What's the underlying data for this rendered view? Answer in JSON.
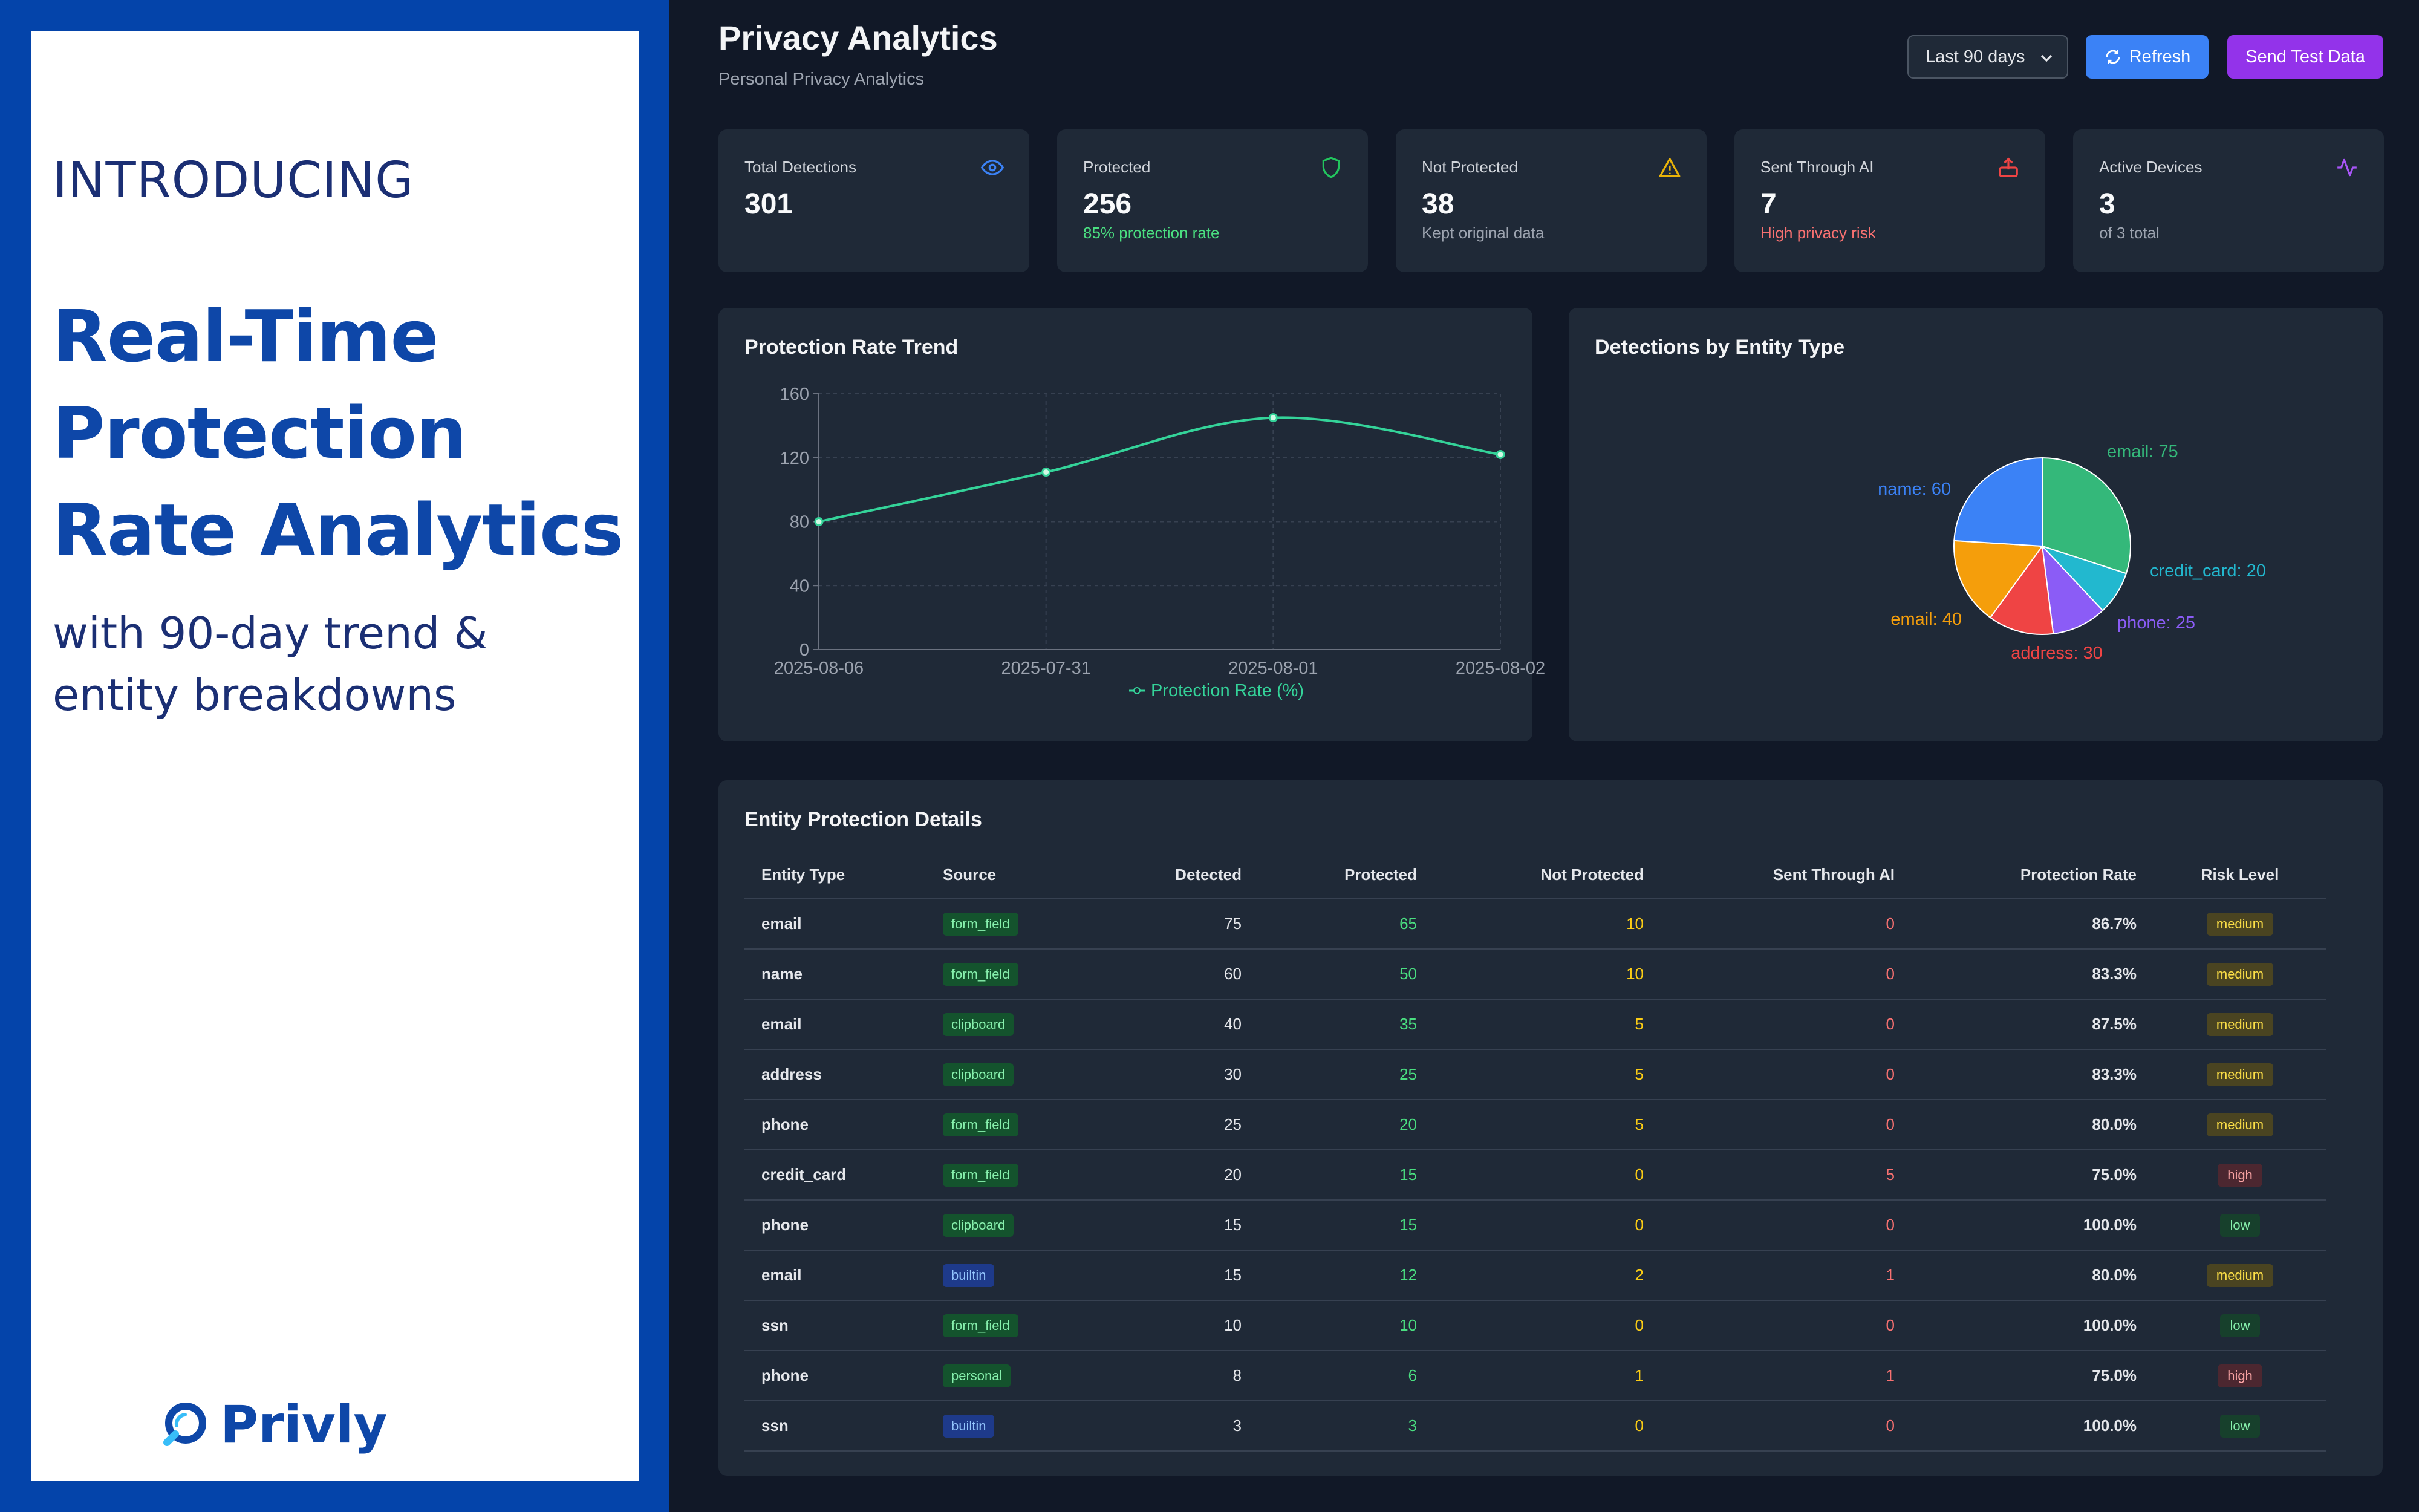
{
  "promo": {
    "intro": "INTRODUCING",
    "headline": "Real-Time Protection Rate Analytics",
    "subtitle": "with 90-day trend & entity breakdowns",
    "brand": "Privly"
  },
  "header": {
    "title": "Privacy Analytics",
    "subtitle": "Personal Privacy Analytics",
    "range_selected": "Last 90 days",
    "refresh_label": "Refresh",
    "send_test_label": "Send Test Data"
  },
  "stats": [
    {
      "label": "Total Detections",
      "value": "301",
      "note": "",
      "icon": "eye-icon",
      "color": "#3b82f6"
    },
    {
      "label": "Protected",
      "value": "256",
      "note": "85% protection rate",
      "icon": "shield-icon",
      "color": "#22c55e"
    },
    {
      "label": "Not Protected",
      "value": "38",
      "note": "Kept original data",
      "icon": "warning-icon",
      "color": "#eab308"
    },
    {
      "label": "Sent Through AI",
      "value": "7",
      "note": "High privacy risk",
      "icon": "upload-icon",
      "color": "#ef4444"
    },
    {
      "label": "Active Devices",
      "value": "3",
      "note": "of 3 total",
      "icon": "activity-icon",
      "color": "#a855f7"
    }
  ],
  "trend_title": "Protection Rate Trend",
  "pie_title": "Detections by Entity Type",
  "table": {
    "title": "Entity Protection Details",
    "headers": [
      "Entity Type",
      "Source",
      "Detected",
      "Protected",
      "Not Protected",
      "Sent Through AI",
      "Protection Rate",
      "Risk Level"
    ],
    "rows": [
      {
        "entity": "email",
        "source": "form_field",
        "detected": "75",
        "protected": "65",
        "not_protected": "10",
        "sent_ai": "0",
        "rate": "86.7%",
        "risk": "medium"
      },
      {
        "entity": "name",
        "source": "form_field",
        "detected": "60",
        "protected": "50",
        "not_protected": "10",
        "sent_ai": "0",
        "rate": "83.3%",
        "risk": "medium"
      },
      {
        "entity": "email",
        "source": "clipboard",
        "detected": "40",
        "protected": "35",
        "not_protected": "5",
        "sent_ai": "0",
        "rate": "87.5%",
        "risk": "medium"
      },
      {
        "entity": "address",
        "source": "clipboard",
        "detected": "30",
        "protected": "25",
        "not_protected": "5",
        "sent_ai": "0",
        "rate": "83.3%",
        "risk": "medium"
      },
      {
        "entity": "phone",
        "source": "form_field",
        "detected": "25",
        "protected": "20",
        "not_protected": "5",
        "sent_ai": "0",
        "rate": "80.0%",
        "risk": "medium"
      },
      {
        "entity": "credit_card",
        "source": "form_field",
        "detected": "20",
        "protected": "15",
        "not_protected": "0",
        "sent_ai": "5",
        "rate": "75.0%",
        "risk": "high"
      },
      {
        "entity": "phone",
        "source": "clipboard",
        "detected": "15",
        "protected": "15",
        "not_protected": "0",
        "sent_ai": "0",
        "rate": "100.0%",
        "risk": "low"
      },
      {
        "entity": "email",
        "source": "builtin",
        "detected": "15",
        "protected": "12",
        "not_protected": "2",
        "sent_ai": "1",
        "rate": "80.0%",
        "risk": "medium"
      },
      {
        "entity": "ssn",
        "source": "form_field",
        "detected": "10",
        "protected": "10",
        "not_protected": "0",
        "sent_ai": "0",
        "rate": "100.0%",
        "risk": "low"
      },
      {
        "entity": "phone",
        "source": "personal",
        "detected": "8",
        "protected": "6",
        "not_protected": "1",
        "sent_ai": "1",
        "rate": "75.0%",
        "risk": "high"
      },
      {
        "entity": "ssn",
        "source": "builtin",
        "detected": "3",
        "protected": "3",
        "not_protected": "0",
        "sent_ai": "0",
        "rate": "100.0%",
        "risk": "low"
      }
    ]
  },
  "colors": {
    "protected": "#4ade80",
    "not_protected": "#facc15",
    "sent_ai": "#f87171",
    "line": "#34d399",
    "source_builtin": "#1e3a8a",
    "source_default": "#14532d"
  },
  "chart_data": [
    {
      "type": "line",
      "title": "Protection Rate Trend",
      "x": [
        "2025-08-06",
        "2025-07-31",
        "2025-08-01",
        "2025-08-02"
      ],
      "series": [
        {
          "name": "Protection Rate (%)",
          "values": [
            80,
            111,
            145,
            122
          ],
          "color": "#34d399"
        }
      ],
      "ylim": [
        0,
        160
      ],
      "yticks": [
        0,
        40,
        80,
        120,
        160
      ],
      "grid": true,
      "legend": "bottom"
    },
    {
      "type": "pie",
      "title": "Detections by Entity Type",
      "slices": [
        {
          "label": "email: 75",
          "value": 75,
          "color": "#34b87a"
        },
        {
          "label": "credit_card: 20",
          "value": 20,
          "color": "#22b8cf"
        },
        {
          "label": "phone: 25",
          "value": 25,
          "color": "#8b5cf6"
        },
        {
          "label": "address: 30",
          "value": 30,
          "color": "#ef4444"
        },
        {
          "label": "email: 40",
          "value": 40,
          "color": "#f59e0b"
        },
        {
          "label": "name: 60",
          "value": 60,
          "color": "#3b82f6"
        }
      ]
    }
  ]
}
